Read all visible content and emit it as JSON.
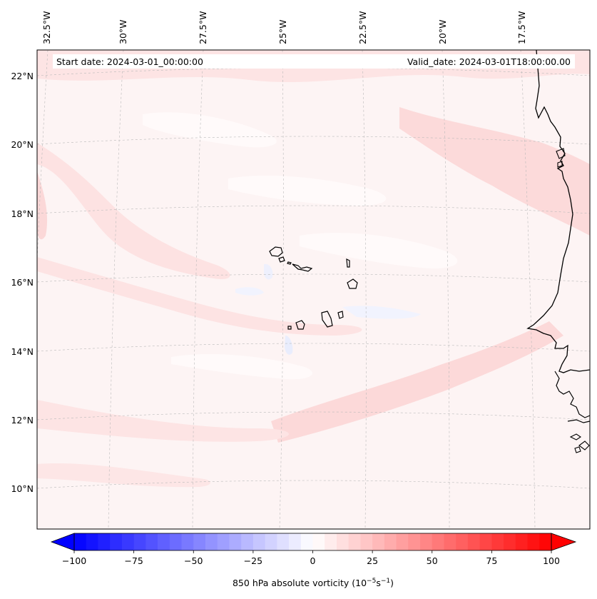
{
  "header": {
    "start_date": "Start date: 2024-03-01_00:00:00",
    "valid_date": "Valid_date: 2024-03-01T18:00:00.00"
  },
  "map": {
    "lon_labels": [
      "32.5°W",
      "30°W",
      "27.5°W",
      "25°W",
      "22.5°W",
      "20°W",
      "17.5°W"
    ],
    "lat_labels": [
      "22°N",
      "20°N",
      "18°N",
      "16°N",
      "14°N",
      "12°N",
      "10°N"
    ],
    "colors": {
      "background": "#fdf3f3",
      "light_pink": "#fde6e6",
      "pink": "#fbd6d6",
      "white": "#ffffff",
      "light_blue": "#eef1fd",
      "coastline": "#000000",
      "gridline": "#b0b0b0"
    }
  },
  "colorbar": {
    "min": -100,
    "max": 100,
    "step": 5,
    "ticks": [
      "−100",
      "−75",
      "−50",
      "−25",
      "0",
      "25",
      "50",
      "75",
      "100"
    ],
    "label_main": "850 hPa absolute vorticity (10",
    "label_exp1": "−5",
    "label_mid": "s",
    "label_exp2": "−1",
    "label_end": ")",
    "color_low": "#0000ff",
    "color_mid": "#ffffff",
    "color_high": "#ff0000"
  }
}
